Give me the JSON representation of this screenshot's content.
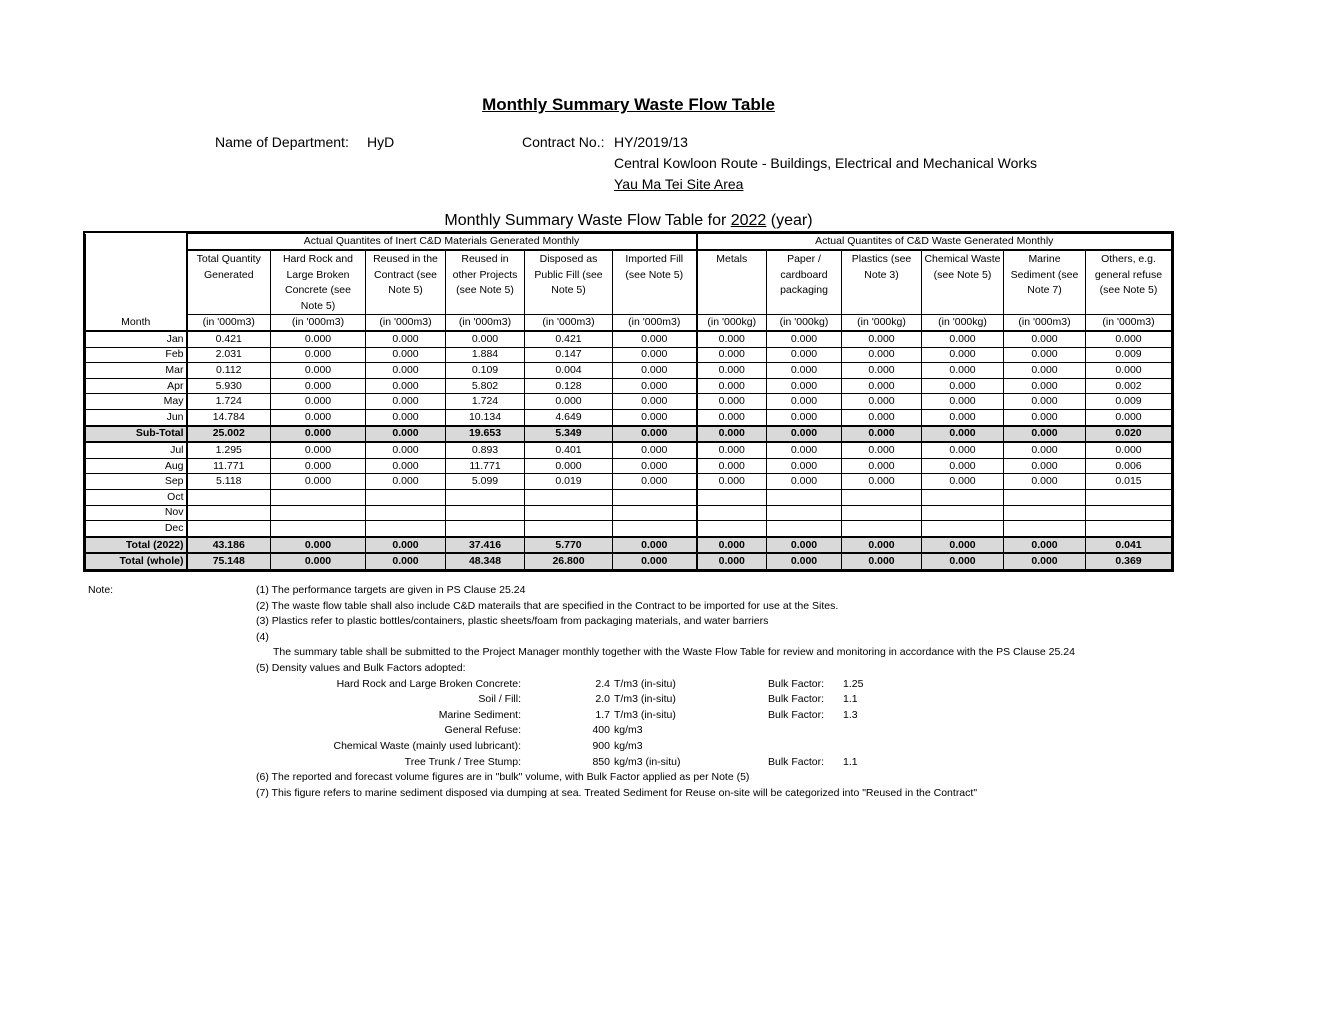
{
  "title": "Monthly Summary Waste Flow Table",
  "department_label": "Name of Department:",
  "department_value": "HyD",
  "contract_label": "Contract No.:",
  "contract_value": "HY/2019/13",
  "contract_name": "Central Kowloon Route - Buildings, Electrical and Mechanical Works",
  "site_area": "Yau Ma Tei Site Area",
  "caption_prefix": "Monthly Summary Waste Flow Table for ",
  "caption_year": "2022",
  "caption_suffix": " (year)",
  "table": {
    "group_inert": "Actual Quantites of Inert C&D Materials Generated Monthly",
    "group_waste": "Actual Quantites of C&D Waste Generated Monthly",
    "month_header": "Month",
    "columns": [
      {
        "label": "Total Quantity Generated",
        "unit": "(in '000m3)"
      },
      {
        "label": "Hard Rock and Large Broken Concrete (see Note 5)",
        "unit": "(in '000m3)"
      },
      {
        "label": "Reused in the Contract (see Note 5)",
        "unit": "(in '000m3)"
      },
      {
        "label": "Reused in other Projects (see Note 5)",
        "unit": "(in '000m3)"
      },
      {
        "label": "Disposed as Public Fill (see Note 5)",
        "unit": "(in '000m3)"
      },
      {
        "label": "Imported Fill (see Note 5)",
        "unit": "(in '000m3)"
      },
      {
        "label": "Metals",
        "unit": "(in '000kg)"
      },
      {
        "label": "Paper / cardboard packaging",
        "unit": "(in '000kg)"
      },
      {
        "label": "Plastics (see Note 3)",
        "unit": "(in '000kg)"
      },
      {
        "label": "Chemical Waste (see Note 5)",
        "unit": "(in '000kg)"
      },
      {
        "label": "Marine Sediment (see Note 7)",
        "unit": "(in '000m3)"
      },
      {
        "label": "Others, e.g. general refuse (see Note 5)",
        "unit": "(in '000m3)"
      }
    ],
    "rows": [
      {
        "month": "Jan",
        "values": [
          "0.421",
          "0.000",
          "0.000",
          "0.000",
          "0.421",
          "0.000",
          "0.000",
          "0.000",
          "0.000",
          "0.000",
          "0.000",
          "0.000"
        ]
      },
      {
        "month": "Feb",
        "values": [
          "2.031",
          "0.000",
          "0.000",
          "1.884",
          "0.147",
          "0.000",
          "0.000",
          "0.000",
          "0.000",
          "0.000",
          "0.000",
          "0.009"
        ]
      },
      {
        "month": "Mar",
        "values": [
          "0.112",
          "0.000",
          "0.000",
          "0.109",
          "0.004",
          "0.000",
          "0.000",
          "0.000",
          "0.000",
          "0.000",
          "0.000",
          "0.000"
        ]
      },
      {
        "month": "Apr",
        "values": [
          "5.930",
          "0.000",
          "0.000",
          "5.802",
          "0.128",
          "0.000",
          "0.000",
          "0.000",
          "0.000",
          "0.000",
          "0.000",
          "0.002"
        ]
      },
      {
        "month": "May",
        "values": [
          "1.724",
          "0.000",
          "0.000",
          "1.724",
          "0.000",
          "0.000",
          "0.000",
          "0.000",
          "0.000",
          "0.000",
          "0.000",
          "0.009"
        ]
      },
      {
        "month": "Jun",
        "values": [
          "14.784",
          "0.000",
          "0.000",
          "10.134",
          "4.649",
          "0.000",
          "0.000",
          "0.000",
          "0.000",
          "0.000",
          "0.000",
          "0.000"
        ]
      },
      {
        "month": "Sub-Total",
        "total": true,
        "values": [
          "25.002",
          "0.000",
          "0.000",
          "19.653",
          "5.349",
          "0.000",
          "0.000",
          "0.000",
          "0.000",
          "0.000",
          "0.000",
          "0.020"
        ]
      },
      {
        "month": "Jul",
        "values": [
          "1.295",
          "0.000",
          "0.000",
          "0.893",
          "0.401",
          "0.000",
          "0.000",
          "0.000",
          "0.000",
          "0.000",
          "0.000",
          "0.000"
        ]
      },
      {
        "month": "Aug",
        "values": [
          "11.771",
          "0.000",
          "0.000",
          "11.771",
          "0.000",
          "0.000",
          "0.000",
          "0.000",
          "0.000",
          "0.000",
          "0.000",
          "0.006"
        ]
      },
      {
        "month": "Sep",
        "values": [
          "5.118",
          "0.000",
          "0.000",
          "5.099",
          "0.019",
          "0.000",
          "0.000",
          "0.000",
          "0.000",
          "0.000",
          "0.000",
          "0.015"
        ]
      },
      {
        "month": "Oct",
        "values": [
          "",
          "",
          "",
          "",
          "",
          "",
          "",
          "",
          "",
          "",
          "",
          ""
        ]
      },
      {
        "month": "Nov",
        "values": [
          "",
          "",
          "",
          "",
          "",
          "",
          "",
          "",
          "",
          "",
          "",
          ""
        ]
      },
      {
        "month": "Dec",
        "values": [
          "",
          "",
          "",
          "",
          "",
          "",
          "",
          "",
          "",
          "",
          "",
          ""
        ]
      },
      {
        "month": "Total (2022)",
        "total": true,
        "values": [
          "43.186",
          "0.000",
          "0.000",
          "37.416",
          "5.770",
          "0.000",
          "0.000",
          "0.000",
          "0.000",
          "0.000",
          "0.000",
          "0.041"
        ]
      },
      {
        "month": "Total (whole)",
        "total": true,
        "values": [
          "75.148",
          "0.000",
          "0.000",
          "48.348",
          "26.800",
          "0.000",
          "0.000",
          "0.000",
          "0.000",
          "0.000",
          "0.000",
          "0.369"
        ]
      }
    ]
  },
  "notes": {
    "label": "Note:",
    "items": [
      "(1)  The performance targets are given in PS Clause 25.24",
      "(2)  The waste flow table shall also include C&D materails that are specified in the Contract to be imported for use at the Sites.",
      "(3)  Plastics refer to plastic bottles/containers, plastic sheets/foam from packaging materials, and water barriers",
      "(4)"
    ],
    "note4_text": "The summary table shall be submitted to the Project Manager monthly together with the Waste Flow Table for review and monitoring in accordance with the PS Clause 25.24",
    "note5_heading": "(5)  Density values and Bulk Factors adopted:",
    "densities": [
      {
        "material": "Hard Rock and Large Broken Concrete:",
        "value": "2.4",
        "unit": "T/m3 (in-situ)",
        "bulk_label": "Bulk Factor:",
        "bulk": "1.25"
      },
      {
        "material": "Soil / Fill:",
        "value": "2.0",
        "unit": "T/m3 (in-situ)",
        "bulk_label": "Bulk Factor:",
        "bulk": "1.1"
      },
      {
        "material": "Marine Sediment:",
        "value": "1.7",
        "unit": "T/m3 (in-situ)",
        "bulk_label": "Bulk Factor:",
        "bulk": "1.3"
      },
      {
        "material": "General Refuse:",
        "value": "400",
        "unit": "kg/m3"
      },
      {
        "material": "Chemical Waste (mainly used lubricant):",
        "value": "900",
        "unit": "kg/m3"
      },
      {
        "material": "Tree Trunk / Tree Stump:",
        "value": "850",
        "unit": "kg/m3 (in-situ)",
        "bulk_label": "Bulk Factor:",
        "bulk": "1.1"
      }
    ],
    "note6": "(6)  The reported and forecast volume figures are in \"bulk\" volume, with Bulk Factor applied as per Note (5)",
    "note7": "(7)  This figure refers to marine sediment disposed via dumping at sea. Treated Sediment for Reuse on-site will be categorized into \"Reused in the Contract\""
  }
}
